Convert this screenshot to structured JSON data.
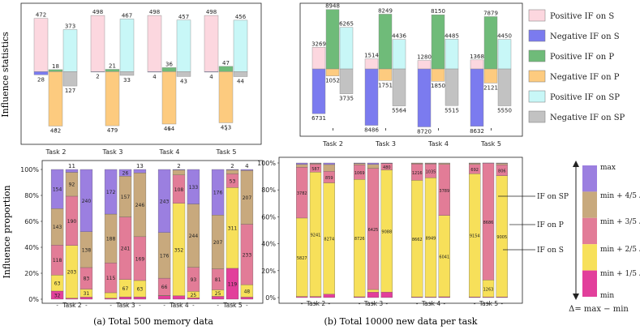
{
  "legend": {
    "items": [
      {
        "label": "Positive IF on S",
        "color": "#fcd7df"
      },
      {
        "label": "Negative IF on S",
        "color": "#7b7bef"
      },
      {
        "label": "Positive IF on P",
        "color": "#6fbb79"
      },
      {
        "label": "Negative IF on P",
        "color": "#fdcb7f"
      },
      {
        "label": "Positive IF on SP",
        "color": "#c8f7f7"
      },
      {
        "label": "Negative IF on SP",
        "color": "#c2c2c2"
      }
    ]
  },
  "colorbar": {
    "labels": [
      "max",
      "min + 4/5 Δ",
      "min + 3/5 Δ",
      "min + 2/5 Δ",
      "min + 1/5 Δ",
      "min"
    ],
    "colors": [
      "#9b7fe0",
      "#c8a97d",
      "#e27c97",
      "#f7e05a",
      "#e23f9b"
    ],
    "formula": "Δ= max − min"
  },
  "chart_data": [
    {
      "type": "bar",
      "id": "influence-statistics-memory",
      "ylabel": "Influence statistics",
      "categories": [
        "Task 2",
        "Task 3",
        "Task 4",
        "Task 5"
      ],
      "ylim": [
        -500,
        520
      ],
      "series": [
        {
          "name": "Positive IF on S",
          "values": [
            472,
            498,
            498,
            498
          ],
          "labels": [
            "472",
            "498",
            "498",
            "498"
          ]
        },
        {
          "name": "Negative IF on S",
          "values": [
            -28,
            -2,
            -4,
            -4
          ],
          "labels": [
            "28",
            "2",
            "4",
            "4"
          ]
        },
        {
          "name": "Positive IF on P",
          "values": [
            18,
            21,
            36,
            47
          ],
          "labels": [
            "18",
            "21",
            "36",
            "47"
          ]
        },
        {
          "name": "Negative IF on P",
          "values": [
            -482,
            -479,
            -464,
            -453
          ],
          "labels": [
            "482",
            "479",
            "464",
            "453"
          ]
        },
        {
          "name": "Positive IF on SP",
          "values": [
            373,
            467,
            457,
            456
          ],
          "labels": [
            "373",
            "467",
            "457",
            "456"
          ]
        },
        {
          "name": "Negative IF on SP",
          "values": [
            -127,
            -33,
            -43,
            -44
          ],
          "labels": [
            "127",
            "33",
            "43",
            "44"
          ]
        }
      ]
    },
    {
      "type": "bar",
      "id": "influence-statistics-new",
      "categories": [
        "Task 2",
        "Task 3",
        "Task 4",
        "Task 5"
      ],
      "ylim": [
        -8900,
        9400
      ],
      "series": [
        {
          "name": "Positive IF on S",
          "values": [
            3269,
            1514,
            1280,
            1368
          ],
          "labels": [
            "3269",
            "1514",
            "1280",
            "1368"
          ]
        },
        {
          "name": "Negative IF on S",
          "values": [
            -6731,
            -8486,
            -8720,
            -8632
          ],
          "labels": [
            "6731",
            "8486",
            "8720",
            "8632"
          ]
        },
        {
          "name": "Positive IF on P",
          "values": [
            8948,
            8249,
            8150,
            7879
          ],
          "labels": [
            "8948",
            "8249",
            "8150",
            "7879"
          ]
        },
        {
          "name": "Negative IF on P",
          "values": [
            -1052,
            -1751,
            -1850,
            -2121
          ],
          "labels": [
            "1052",
            "1751",
            "1850",
            "2121"
          ]
        },
        {
          "name": "Positive IF on SP",
          "values": [
            6265,
            4436,
            4485,
            4450
          ],
          "labels": [
            "6265",
            "4436",
            "4485",
            "4450"
          ]
        },
        {
          "name": "Negative IF on SP",
          "values": [
            -3735,
            -5564,
            -5515,
            -5550
          ],
          "labels": [
            "3735",
            "5564",
            "5515",
            "5550"
          ]
        }
      ]
    },
    {
      "type": "bar",
      "stacked": true,
      "id": "influence-proportion-memory",
      "ylabel": "Influence proportion",
      "ylim": [
        0,
        100
      ],
      "yticks": [
        "0%",
        "20%",
        "40%",
        "60%",
        "80%",
        "100%"
      ],
      "caption": "(a) Total 500 memory data",
      "categories": [
        "Task 2",
        "Task 3",
        "Task 4",
        "Task 5"
      ],
      "bar_tick": "-",
      "groups": [
        {
          "task": "Task 2",
          "bars": [
            {
              "segments": [
                32,
                63,
                118,
                143,
                154
              ],
              "labels": [
                "32",
                "63",
                "118",
                "143",
                "154"
              ],
              "top": ""
            },
            {
              "segments": [
                4,
                203,
                190,
                92,
                11
              ],
              "labels": [
                "4",
                "203",
                "190",
                "92",
                "11"
              ],
              "top": "11"
            },
            {
              "segments": [
                8,
                31,
                83,
                138,
                240
              ],
              "labels": [
                "8",
                "31",
                "83",
                "138",
                "240"
              ],
              "top": ""
            }
          ]
        },
        {
          "task": "Task 3",
          "bars": [
            {
              "segments": [
                4,
                21,
                115,
                188,
                172
              ],
              "labels": [
                "4",
                "21",
                "115",
                "188",
                "172"
              ],
              "top": ""
            },
            {
              "segments": [
                9,
                67,
                241,
                157,
                26
              ],
              "labels": [
                "9",
                "67",
                "241",
                "157",
                "26"
              ],
              "top": ""
            },
            {
              "segments": [
                9,
                63,
                169,
                246,
                13
              ],
              "labels": [
                "9",
                "63",
                "169",
                "246",
                "13"
              ],
              "top": "13"
            }
          ]
        },
        {
          "task": "Task 4",
          "bars": [
            {
              "segments": [
                13,
                2,
                66,
                176,
                243
              ],
              "labels": [
                "13",
                "2",
                "66",
                "176",
                "243"
              ],
              "top": ""
            },
            {
              "segments": [
                13,
                352,
                108,
                19,
                2
              ],
              "labels": [
                "13",
                "352",
                "108",
                "19",
                "2"
              ],
              "top": "2"
            },
            {
              "segments": [
                5,
                25,
                93,
                244,
                133
              ],
              "labels": [
                "5",
                "25",
                "93",
                "244",
                "133"
              ],
              "top": ""
            }
          ]
        },
        {
          "task": "Task 5",
          "bars": [
            {
              "segments": [
                11,
                25,
                81,
                207,
                176
              ],
              "labels": [
                "11",
                "25",
                "81",
                "207",
                "176"
              ],
              "top": ""
            },
            {
              "segments": [
                119,
                311,
                53,
                15,
                2
              ],
              "labels": [
                "119",
                "311",
                "53",
                "15",
                "2"
              ],
              "top": "2"
            },
            {
              "segments": [
                8,
                48,
                233,
                207,
                4
              ],
              "labels": [
                "8",
                "48",
                "233",
                "207",
                "4"
              ],
              "top": "4"
            }
          ]
        }
      ]
    },
    {
      "type": "bar",
      "stacked": true,
      "id": "influence-proportion-new",
      "ylim": [
        0,
        100
      ],
      "yticks": [
        "0%",
        "20%",
        "40%",
        "60%",
        "80%",
        "100%"
      ],
      "caption": "(b) Total 10000 new data per task",
      "categories": [
        "Task 2",
        "Task 3",
        "Task 4",
        "Task 5"
      ],
      "bar_tick": "-",
      "annotations": [
        "IF on SP",
        "IF on P",
        "IF on S"
      ],
      "groups": [
        {
          "task": "Task 2",
          "bars": [
            {
              "segments": [
                80,
                5827,
                3782,
                211,
                100
              ],
              "labels": [
                "",
                "5827",
                "3782",
                "",
                ""
              ]
            },
            {
              "segments": [
                80,
                9241,
                587,
                62,
                30
              ],
              "labels": [
                "",
                "9241",
                "587",
                "",
                ""
              ]
            },
            {
              "segments": [
                250,
                8274,
                859,
                500,
                117
              ],
              "labels": [
                "",
                "8274",
                "859",
                "",
                ""
              ]
            }
          ]
        },
        {
          "task": "Task 3",
          "bars": [
            {
              "segments": [
                60,
                8726,
                1069,
                110,
                35
              ],
              "labels": [
                "",
                "8726",
                "1069",
                "",
                ""
              ]
            },
            {
              "segments": [
                396,
                9140,
                6425,
                80,
                30
              ],
              "labels": [
                "396",
                "",
                "6425",
                "",
                ""
              ],
              "weights": [
                4,
                2,
                90,
                3,
                1
              ]
            },
            {
              "segments": [
                400,
                9088,
                480,
                22,
                10
              ],
              "labels": [
                "",
                "9088",
                "480",
                "",
                ""
              ]
            }
          ]
        },
        {
          "task": "Task 4",
          "bars": [
            {
              "segments": [
                50,
                8662,
                1216,
                50,
                22
              ],
              "labels": [
                "",
                "8662",
                "1216",
                "",
                ""
              ]
            },
            {
              "segments": [
                40,
                8949,
                1035,
                50,
                26
              ],
              "labels": [
                "",
                "8949",
                "1035",
                "",
                ""
              ]
            },
            {
              "segments": [
                60,
                6041,
                3789,
                90,
                20
              ],
              "labels": [
                "",
                "6041",
                "3789",
                "",
                ""
              ]
            }
          ]
        },
        {
          "task": "Task 5",
          "bars": [
            {
              "segments": [
                50,
                9154,
                692,
                80,
                24
              ],
              "labels": [
                "",
                "9154",
                "692",
                "",
                ""
              ]
            },
            {
              "segments": [
                40,
                1263,
                8686,
                10,
                1
              ],
              "labels": [
                "",
                "1263",
                "8686",
                "",
                ""
              ]
            },
            {
              "segments": [
                50,
                9005,
                806,
                110,
                29
              ],
              "labels": [
                "",
                "9005",
                "806",
                "",
                ""
              ]
            }
          ]
        }
      ]
    }
  ]
}
